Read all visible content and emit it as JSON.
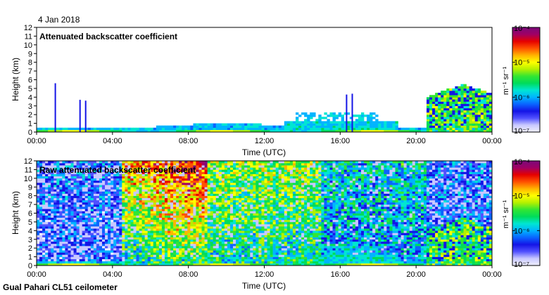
{
  "date_label": "4 Jan 2018",
  "footer": "Gual Pahari CL51 ceilometer",
  "colors": {
    "scale": [
      "#f0f0ff",
      "#c8c8ff",
      "#5050ff",
      "#1414e6",
      "#0a64ff",
      "#00b4ff",
      "#00e6d2",
      "#00dc5a",
      "#32e632",
      "#b4f000",
      "#ffff00",
      "#ffb400",
      "#ff5000",
      "#e60000",
      "#a00064",
      "#7a0a7a"
    ]
  },
  "chart_data": [
    {
      "type": "heatmap",
      "title": "Attenuated backscatter coefficient",
      "xlabel": "Time (UTC)",
      "ylabel": "Height (km)",
      "x_ticks": [
        "00:00",
        "04:00",
        "08:00",
        "12:00",
        "16:00",
        "20:00",
        "00:00"
      ],
      "y_ticks": [
        "0",
        "1",
        "2",
        "3",
        "4",
        "5",
        "6",
        "7",
        "8",
        "9",
        "10",
        "11",
        "12"
      ],
      "xlim_hours": [
        0,
        24
      ],
      "ylim_km": [
        0,
        12
      ],
      "colorbar": {
        "label": "m⁻¹ sr⁻¹",
        "ticks": [
          "10⁻⁴",
          "10⁻⁵",
          "10⁻⁶",
          "10⁻⁷"
        ],
        "log_range": [
          -7,
          -4
        ]
      }
    },
    {
      "type": "heatmap",
      "title": "Raw attenuated backscatter coefficient",
      "xlabel": "Time (UTC)",
      "ylabel": "Height (km)",
      "x_ticks": [
        "00:00",
        "04:00",
        "08:00",
        "12:00",
        "16:00",
        "20:00",
        "00:00"
      ],
      "y_ticks": [
        "0",
        "1",
        "2",
        "3",
        "4",
        "5",
        "6",
        "7",
        "8",
        "9",
        "10",
        "11",
        "12"
      ],
      "xlim_hours": [
        0,
        24
      ],
      "ylim_km": [
        0,
        12
      ],
      "colorbar": {
        "label": "m⁻¹ sr⁻¹",
        "ticks": [
          "10⁻⁴",
          "10⁻⁵",
          "10⁻⁶",
          "10⁻⁷"
        ],
        "log_range": [
          -7,
          -4
        ]
      }
    }
  ]
}
